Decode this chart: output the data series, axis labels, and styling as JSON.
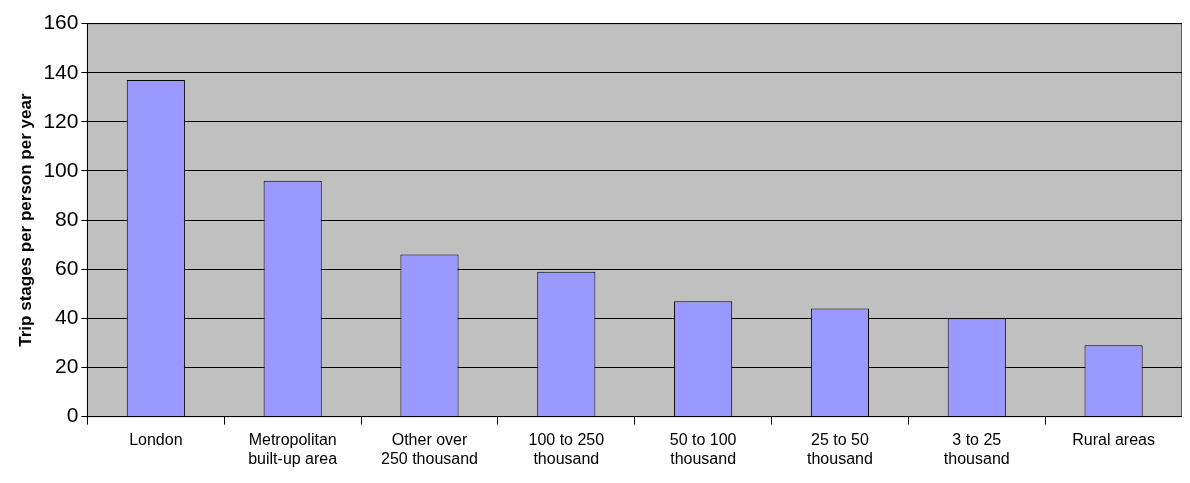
{
  "chart_data": {
    "type": "bar",
    "ylabel": "Trip stages per person per year",
    "categories": [
      "London",
      "Metropolitan built-up area",
      "Other over 250 thousand",
      "100 to 250 thousand",
      "50 to 100 thousand",
      "25 to 50 thousand",
      "3 to 25 thousand",
      "Rural areas"
    ],
    "values": [
      137,
      96,
      66,
      59,
      47,
      44,
      40,
      29
    ],
    "color": "#9999ff",
    "ylim": [
      0,
      160
    ],
    "yticks": [
      0,
      20,
      40,
      60,
      80,
      100,
      120,
      140,
      160
    ],
    "grid": "y",
    "legend": false
  }
}
